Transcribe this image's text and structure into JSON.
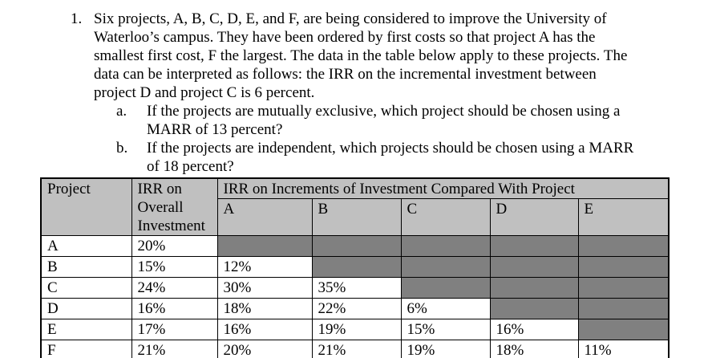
{
  "problem": {
    "number": "1.",
    "lines": [
      "Six projects, A, B, C, D, E, and F, are being considered to improve the University of",
      "Waterloo’s campus. They have been ordered by first costs so that project A has the",
      "smallest first cost, F the largest. The data in the table below apply to these projects. The",
      "data can be interpreted as follows: the IRR on the incremental investment between",
      "project D and project C is 6 percent."
    ],
    "sub_items": [
      {
        "label": "a.",
        "lines": [
          "If the projects are mutually exclusive, which project should be chosen using a",
          "MARR of 13 percent?"
        ]
      },
      {
        "label": "b.",
        "lines": [
          "If the projects are independent, which projects should be chosen using a MARR",
          "of 18 percent?"
        ]
      }
    ]
  },
  "table": {
    "header": {
      "project": "Project",
      "overall": "IRR on Overall Investment",
      "increments_title": "IRR on Increments of Investment Compared With Project",
      "increment_columns": [
        "A",
        "B",
        "C",
        "D",
        "E"
      ]
    },
    "rows": [
      {
        "project": "A",
        "overall": "20%",
        "increments": [
          null,
          null,
          null,
          null,
          null
        ]
      },
      {
        "project": "B",
        "overall": "15%",
        "increments": [
          "12%",
          null,
          null,
          null,
          null
        ]
      },
      {
        "project": "C",
        "overall": "24%",
        "increments": [
          "30%",
          "35%",
          null,
          null,
          null
        ]
      },
      {
        "project": "D",
        "overall": "16%",
        "increments": [
          "18%",
          "22%",
          "6%",
          null,
          null
        ]
      },
      {
        "project": "E",
        "overall": "17%",
        "increments": [
          "16%",
          "19%",
          "15%",
          "16%",
          null
        ]
      },
      {
        "project": "F",
        "overall": "21%",
        "increments": [
          "20%",
          "21%",
          "19%",
          "18%",
          "11%"
        ]
      }
    ],
    "colors": {
      "header_bg": "#c0c0c0",
      "blocked_bg": "#808080",
      "border": "#000000"
    }
  }
}
